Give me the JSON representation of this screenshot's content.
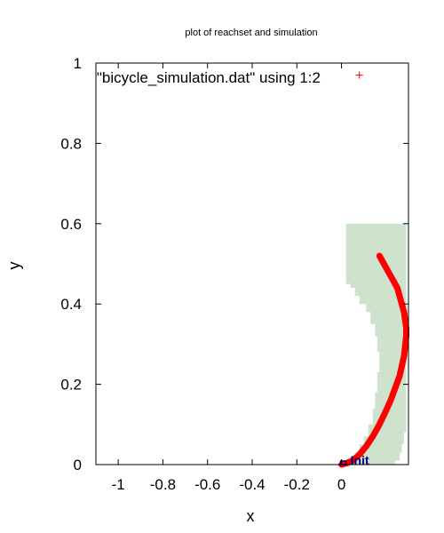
{
  "chart_data": {
    "type": "scatter",
    "title": "plot of reachset and simulation",
    "xlabel": "x",
    "ylabel": "y",
    "xlim": [
      -1.1,
      0.3
    ],
    "ylim": [
      0,
      1
    ],
    "xticks": [
      -1,
      -0.8,
      -0.6,
      -0.4,
      -0.2,
      0
    ],
    "xtick_labels": [
      "-1",
      "-0.8",
      "-0.6",
      "-0.4",
      "-0.2",
      "0"
    ],
    "yticks": [
      0,
      0.2,
      0.4,
      0.6,
      0.8,
      1
    ],
    "ytick_labels": [
      "0",
      "0.2",
      "0.4",
      "0.6",
      "0.8",
      "1"
    ],
    "legend": {
      "entry": "\"bicycle_simulation.dat\" using 1:2",
      "placement": "top-right"
    },
    "annotation": {
      "text": "Init",
      "x": 0.04,
      "y": 0.0
    },
    "colors": {
      "reachset": "#cde3cd",
      "simulation": "#ff0000",
      "init": "#000080"
    },
    "reachset": [
      [
        0.02,
        0.6
      ],
      [
        0.29,
        0.6
      ],
      [
        0.29,
        0.08
      ],
      [
        0.28,
        0.08
      ],
      [
        0.28,
        0.05
      ],
      [
        0.27,
        0.05
      ],
      [
        0.27,
        0.03
      ],
      [
        0.26,
        0.03
      ],
      [
        0.26,
        0.01
      ],
      [
        0.24,
        0.01
      ],
      [
        0.24,
        0.0
      ],
      [
        0.0,
        0.0
      ],
      [
        0.0,
        0.01
      ],
      [
        0.04,
        0.01
      ],
      [
        0.04,
        0.02
      ],
      [
        0.06,
        0.02
      ],
      [
        0.06,
        0.03
      ],
      [
        0.08,
        0.03
      ],
      [
        0.08,
        0.05
      ],
      [
        0.1,
        0.05
      ],
      [
        0.1,
        0.07
      ],
      [
        0.12,
        0.07
      ],
      [
        0.12,
        0.1
      ],
      [
        0.14,
        0.1
      ],
      [
        0.14,
        0.14
      ],
      [
        0.15,
        0.14
      ],
      [
        0.15,
        0.18
      ],
      [
        0.16,
        0.18
      ],
      [
        0.16,
        0.23
      ],
      [
        0.17,
        0.23
      ],
      [
        0.17,
        0.28
      ],
      [
        0.16,
        0.28
      ],
      [
        0.16,
        0.32
      ],
      [
        0.15,
        0.32
      ],
      [
        0.15,
        0.35
      ],
      [
        0.13,
        0.35
      ],
      [
        0.13,
        0.38
      ],
      [
        0.11,
        0.38
      ],
      [
        0.11,
        0.4
      ],
      [
        0.08,
        0.4
      ],
      [
        0.08,
        0.42
      ],
      [
        0.06,
        0.42
      ],
      [
        0.06,
        0.44
      ],
      [
        0.04,
        0.44
      ],
      [
        0.04,
        0.45
      ],
      [
        0.02,
        0.45
      ],
      [
        0.02,
        0.6
      ]
    ],
    "series": [
      {
        "name": "\"bicycle_simulation.dat\" using 1:2",
        "x": [
          0.0,
          0.02,
          0.05,
          0.08,
          0.11,
          0.14,
          0.17,
          0.2,
          0.22,
          0.24,
          0.26,
          0.27,
          0.28,
          0.285,
          0.29,
          0.29,
          0.285,
          0.28,
          0.27,
          0.26,
          0.25,
          0.23,
          0.21,
          0.19,
          0.17
        ],
        "y": [
          0.0,
          0.003,
          0.01,
          0.025,
          0.045,
          0.07,
          0.1,
          0.135,
          0.16,
          0.19,
          0.22,
          0.245,
          0.27,
          0.295,
          0.32,
          0.34,
          0.36,
          0.38,
          0.4,
          0.42,
          0.44,
          0.46,
          0.48,
          0.5,
          0.52
        ]
      }
    ],
    "legend_marker": {
      "x": 0.08,
      "y": 0.97
    }
  }
}
